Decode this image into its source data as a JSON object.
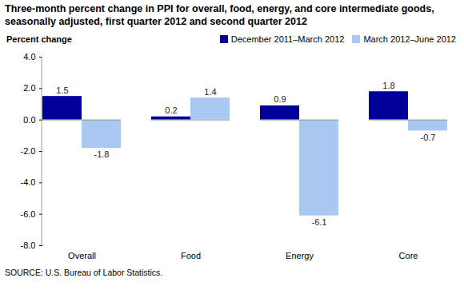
{
  "chart_data": {
    "type": "bar",
    "title": "Three-month percent change in PPI for overall, food, energy, and core intermediate goods, seasonally adjusted, first quarter 2012 and second quarter 2012",
    "y_label": "Percent change",
    "caption": "SOURCE:  U.S. Bureau of Labor Statistics.",
    "categories": [
      "Overall",
      "Food",
      "Energy",
      "Core"
    ],
    "series": [
      {
        "name": "December 2011–March 2012",
        "color": "#000099",
        "values": [
          1.5,
          0.2,
          0.9,
          1.8
        ]
      },
      {
        "name": "March 2012–June 2012",
        "color": "#a9c9f1",
        "values": [
          -1.8,
          1.4,
          -6.1,
          -0.7
        ]
      }
    ],
    "ylim": [
      -8,
      4
    ],
    "yticks": [
      {
        "value": -8,
        "label": "-8.0"
      },
      {
        "value": -6,
        "label": "-6.0"
      },
      {
        "value": -4,
        "label": "-4.0"
      },
      {
        "value": -2,
        "label": "-2.0"
      },
      {
        "value": 0,
        "label": "0.0"
      },
      {
        "value": 2,
        "label": "2.0"
      },
      {
        "value": 4,
        "label": "4.0"
      }
    ],
    "grid": false,
    "legend": "top-right",
    "data_labels": true
  }
}
